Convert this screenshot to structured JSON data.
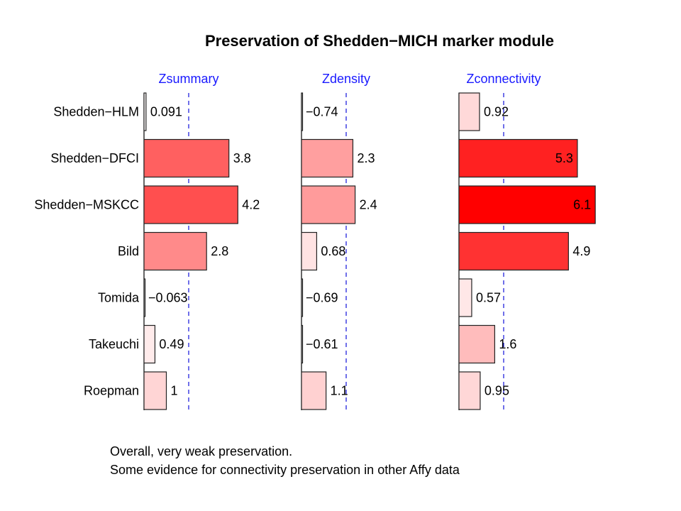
{
  "chart_data": {
    "type": "bar",
    "orientation": "horizontal",
    "title": "Preservation of Shedden−MICH marker module",
    "categories": [
      "Shedden−HLM",
      "Shedden−DFCI",
      "Shedden−MSKCC",
      "Bild",
      "Tomida",
      "Takeuchi",
      "Roepman"
    ],
    "reference_line": 2,
    "series": [
      {
        "name": "Zsummary",
        "values": [
          0.091,
          3.8,
          4.2,
          2.8,
          -0.063,
          0.49,
          1
        ],
        "labels": [
          "0.091",
          "3.8",
          "4.2",
          "2.8",
          "−0.063",
          "0.49",
          "1"
        ]
      },
      {
        "name": "Zdensity",
        "values": [
          -0.74,
          2.3,
          2.4,
          0.68,
          -0.69,
          -0.61,
          1.1
        ],
        "labels": [
          "−0.74",
          "2.3",
          "2.4",
          "0.68",
          "−0.69",
          "−0.61",
          "1.1"
        ]
      },
      {
        "name": "Zconnectivity",
        "values": [
          0.92,
          5.3,
          6.1,
          4.9,
          0.57,
          1.6,
          0.95
        ],
        "labels": [
          "0.92",
          "5.3",
          "6.1",
          "4.9",
          "0.57",
          "1.6",
          "0.95"
        ]
      }
    ],
    "colors": {
      "title": "#000000",
      "series_header": "#1a1aff",
      "reference_line": "#2222dd",
      "bar_outline": "#222222",
      "fill_max": "#ff0000",
      "fill_min": "#ffffff"
    },
    "grid": false
  },
  "captions": [
    "Overall, very weak preservation.",
    "Some evidence for connectivity preservation in other Affy data"
  ]
}
